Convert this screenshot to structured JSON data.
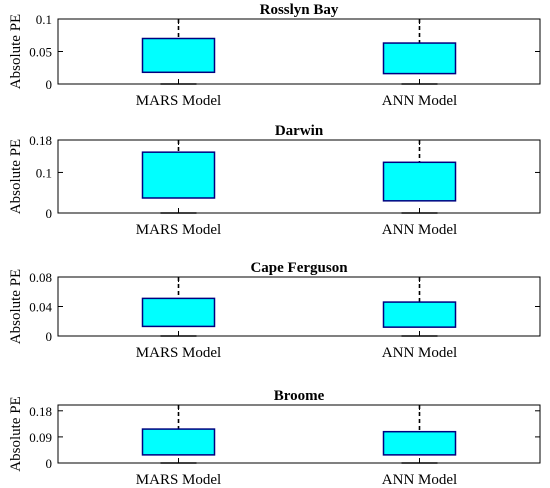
{
  "colors": {
    "box_fill": "#00ffff",
    "box_stroke": "#00007f",
    "whisker": "#000000",
    "axes": "#000000"
  },
  "chart_data": [
    {
      "type": "boxplot",
      "title": "Rosslyn Bay",
      "ylabel": "Absolute PE",
      "categories": [
        "MARS Model",
        "ANN Model"
      ],
      "ylim": [
        0,
        0.1
      ],
      "yticks": [
        0,
        0.05,
        0.1
      ],
      "ytick_labels": [
        "0",
        "0.05",
        "0.1"
      ],
      "boxes": [
        {
          "name": "MARS Model",
          "min": 0,
          "q1": 0.018,
          "median": 0.018,
          "q3": 0.07,
          "max": 0.1
        },
        {
          "name": "ANN Model",
          "min": 0,
          "q1": 0.016,
          "median": 0.016,
          "q3": 0.063,
          "max": 0.1
        }
      ]
    },
    {
      "type": "boxplot",
      "title": "Darwin",
      "ylabel": "Absolute PE",
      "categories": [
        "MARS Model",
        "ANN Model"
      ],
      "ylim": [
        0,
        0.18
      ],
      "yticks": [
        0,
        0.1,
        0.18
      ],
      "ytick_labels": [
        "0",
        "0.1",
        "0.18"
      ],
      "boxes": [
        {
          "name": "MARS Model",
          "min": 0,
          "q1": 0.037,
          "median": 0.037,
          "q3": 0.15,
          "max": 0.18
        },
        {
          "name": "ANN Model",
          "min": 0,
          "q1": 0.03,
          "median": 0.03,
          "q3": 0.125,
          "max": 0.18
        }
      ]
    },
    {
      "type": "boxplot",
      "title": "Cape Ferguson",
      "ylabel": "Absolute PE",
      "categories": [
        "MARS Model",
        "ANN Model"
      ],
      "ylim": [
        0,
        0.08
      ],
      "yticks": [
        0,
        0.04,
        0.08
      ],
      "ytick_labels": [
        "0",
        "0.04",
        "0.08"
      ],
      "boxes": [
        {
          "name": "MARS Model",
          "min": 0,
          "q1": 0.013,
          "median": 0.013,
          "q3": 0.051,
          "max": 0.08
        },
        {
          "name": "ANN Model",
          "min": 0,
          "q1": 0.012,
          "median": 0.012,
          "q3": 0.046,
          "max": 0.08
        }
      ]
    },
    {
      "type": "boxplot",
      "title": "Broome",
      "ylabel": "Absolute PE",
      "categories": [
        "MARS Model",
        "ANN Model"
      ],
      "ylim": [
        0,
        0.2
      ],
      "yticks": [
        0,
        0.09,
        0.18
      ],
      "ytick_labels": [
        "0",
        "0.09",
        "0.18"
      ],
      "boxes": [
        {
          "name": "MARS Model",
          "min": 0,
          "q1": 0.028,
          "median": 0.028,
          "q3": 0.117,
          "max": 0.2
        },
        {
          "name": "ANN Model",
          "min": 0,
          "q1": 0.028,
          "median": 0.028,
          "q3": 0.108,
          "max": 0.2
        }
      ]
    }
  ]
}
